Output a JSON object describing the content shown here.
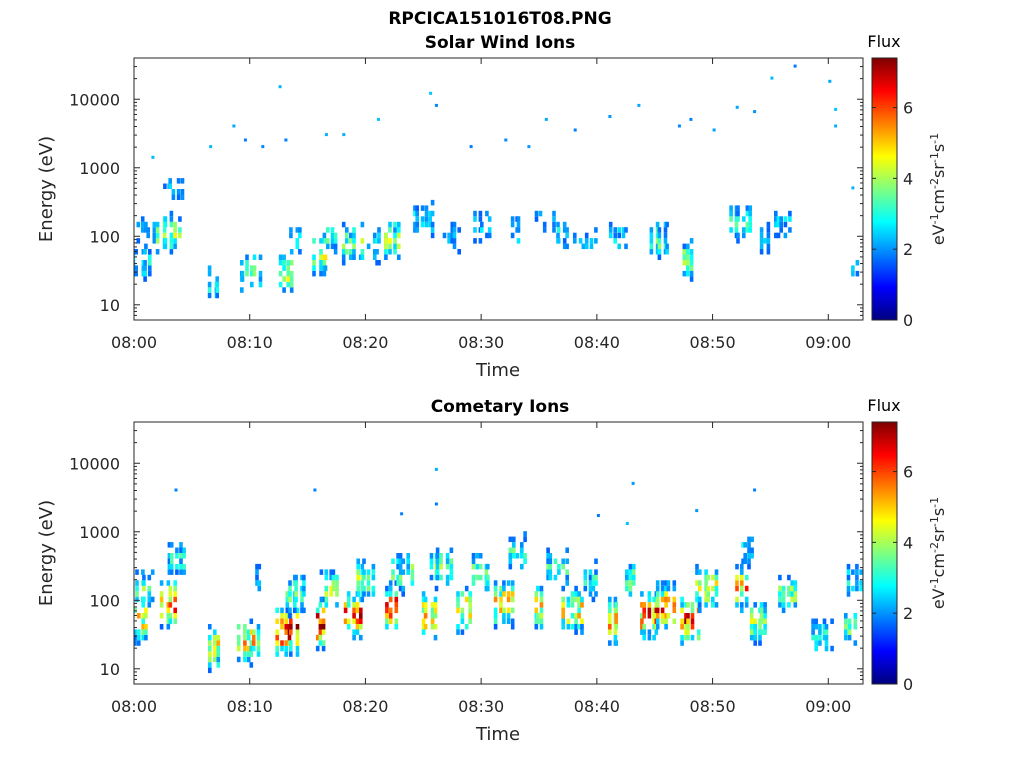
{
  "figure_title": "RPCICA151016T08.PNG",
  "colormap": [
    "#00007f",
    "#0000ff",
    "#007fff",
    "#00ffff",
    "#7fff7f",
    "#ffff00",
    "#ff7f00",
    "#ff0000",
    "#7f0000"
  ],
  "chart_data": [
    {
      "type": "heatmap",
      "title": "Solar Wind Ions",
      "xlabel": "Time",
      "ylabel": "Energy (eV)",
      "x_range": [
        "08:00",
        "09:03"
      ],
      "xticks": [
        "08:00",
        "08:10",
        "08:20",
        "08:30",
        "08:40",
        "08:50",
        "09:00"
      ],
      "y_scale": "log",
      "ylim": [
        6,
        40000
      ],
      "yticks": [
        10,
        100,
        1000,
        10000
      ],
      "colorbar": {
        "label": "Flux",
        "units": "eV-1 cm-2 sr-1 s-1",
        "range": [
          0,
          7.4
        ],
        "ticks": [
          0,
          2,
          4,
          6
        ]
      },
      "bursts": [
        {
          "t": 0.5,
          "e": 40,
          "f": 3.0
        },
        {
          "t": 1.0,
          "e": 120,
          "f": 2.6
        },
        {
          "t": 3.0,
          "e": 110,
          "f": 4.2
        },
        {
          "t": 3.4,
          "e": 500,
          "f": 2.2
        },
        {
          "t": 7.0,
          "e": 20,
          "f": 3.2
        },
        {
          "t": 10.0,
          "e": 30,
          "f": 3.5
        },
        {
          "t": 13.2,
          "e": 30,
          "f": 4.8
        },
        {
          "t": 14.0,
          "e": 90,
          "f": 2.8
        },
        {
          "t": 16.2,
          "e": 55,
          "f": 4.5
        },
        {
          "t": 17.2,
          "e": 90,
          "f": 3.2
        },
        {
          "t": 19.0,
          "e": 80,
          "f": 3.8
        },
        {
          "t": 21.0,
          "e": 70,
          "f": 3.4
        },
        {
          "t": 22.3,
          "e": 90,
          "f": 4.3
        },
        {
          "t": 25.0,
          "e": 180,
          "f": 2.8
        },
        {
          "t": 27.5,
          "e": 100,
          "f": 2.4
        },
        {
          "t": 30.0,
          "e": 140,
          "f": 2.6
        },
        {
          "t": 33.0,
          "e": 120,
          "f": 3.0
        },
        {
          "t": 35.5,
          "e": 170,
          "f": 2.5
        },
        {
          "t": 37.0,
          "e": 110,
          "f": 2.7
        },
        {
          "t": 39.0,
          "e": 90,
          "f": 2.6
        },
        {
          "t": 42.0,
          "e": 100,
          "f": 2.8
        },
        {
          "t": 45.5,
          "e": 90,
          "f": 3.6
        },
        {
          "t": 48.0,
          "e": 45,
          "f": 4.2
        },
        {
          "t": 52.5,
          "e": 160,
          "f": 3.5
        },
        {
          "t": 54.5,
          "e": 90,
          "f": 2.7
        },
        {
          "t": 56.0,
          "e": 150,
          "f": 2.5
        },
        {
          "t": 62.5,
          "e": 40,
          "f": 2.6
        }
      ],
      "scatter": [
        {
          "t": 1.5,
          "e": 1400
        },
        {
          "t": 6.5,
          "e": 2000
        },
        {
          "t": 8.5,
          "e": 4000
        },
        {
          "t": 9.5,
          "e": 2500
        },
        {
          "t": 11.0,
          "e": 2000
        },
        {
          "t": 12.5,
          "e": 15000
        },
        {
          "t": 13.0,
          "e": 2500
        },
        {
          "t": 16.5,
          "e": 3000
        },
        {
          "t": 18.0,
          "e": 3000
        },
        {
          "t": 21.0,
          "e": 5000
        },
        {
          "t": 25.5,
          "e": 12000
        },
        {
          "t": 26.0,
          "e": 8000
        },
        {
          "t": 29.0,
          "e": 2000
        },
        {
          "t": 32.0,
          "e": 2500
        },
        {
          "t": 34.0,
          "e": 2000
        },
        {
          "t": 35.5,
          "e": 5000
        },
        {
          "t": 38.0,
          "e": 3500
        },
        {
          "t": 41.0,
          "e": 5500
        },
        {
          "t": 43.5,
          "e": 8000
        },
        {
          "t": 47.0,
          "e": 4000
        },
        {
          "t": 50.0,
          "e": 3500
        },
        {
          "t": 52.0,
          "e": 7500
        },
        {
          "t": 53.5,
          "e": 6500
        },
        {
          "t": 55.0,
          "e": 20000
        },
        {
          "t": 57.0,
          "e": 30000
        },
        {
          "t": 60.0,
          "e": 18000
        },
        {
          "t": 60.5,
          "e": 7000
        },
        {
          "t": 60.5,
          "e": 4000
        },
        {
          "t": 48.0,
          "e": 5000
        },
        {
          "t": 62.0,
          "e": 500
        }
      ]
    },
    {
      "type": "heatmap",
      "title": "Cometary Ions",
      "xlabel": "Time",
      "ylabel": "Energy (eV)",
      "x_range": [
        "08:00",
        "09:03"
      ],
      "xticks": [
        "08:00",
        "08:10",
        "08:20",
        "08:30",
        "08:40",
        "08:50",
        "09:00"
      ],
      "y_scale": "log",
      "ylim": [
        6,
        40000
      ],
      "yticks": [
        10,
        100,
        1000,
        10000
      ],
      "colorbar": {
        "label": "Flux",
        "units": "eV-1 cm-2 sr-1 s-1",
        "range": [
          0,
          7.4
        ],
        "ticks": [
          0,
          2,
          4,
          6
        ]
      },
      "bursts": [
        {
          "t": 0.5,
          "e": 50,
          "f": 5.2
        },
        {
          "t": 1.0,
          "e": 150,
          "f": 3.5
        },
        {
          "t": 3.0,
          "e": 90,
          "f": 6.6
        },
        {
          "t": 3.6,
          "e": 400,
          "f": 3.2
        },
        {
          "t": 7.0,
          "e": 20,
          "f": 4.8
        },
        {
          "t": 10.0,
          "e": 25,
          "f": 5.2
        },
        {
          "t": 10.5,
          "e": 200,
          "f": 2.5
        },
        {
          "t": 13.2,
          "e": 35,
          "f": 6.9
        },
        {
          "t": 14.0,
          "e": 120,
          "f": 3.8
        },
        {
          "t": 16.2,
          "e": 45,
          "f": 7.0
        },
        {
          "t": 17.0,
          "e": 150,
          "f": 4.2
        },
        {
          "t": 19.0,
          "e": 60,
          "f": 6.4
        },
        {
          "t": 20.0,
          "e": 200,
          "f": 4.0
        },
        {
          "t": 22.2,
          "e": 80,
          "f": 6.7
        },
        {
          "t": 23.2,
          "e": 250,
          "f": 3.8
        },
        {
          "t": 25.5,
          "e": 60,
          "f": 5.8
        },
        {
          "t": 26.5,
          "e": 300,
          "f": 3.8
        },
        {
          "t": 28.5,
          "e": 70,
          "f": 5.6
        },
        {
          "t": 30.0,
          "e": 250,
          "f": 3.8
        },
        {
          "t": 32.0,
          "e": 90,
          "f": 5.6
        },
        {
          "t": 33.2,
          "e": 500,
          "f": 3.4
        },
        {
          "t": 35.0,
          "e": 80,
          "f": 5.4
        },
        {
          "t": 36.5,
          "e": 300,
          "f": 3.4
        },
        {
          "t": 38.0,
          "e": 70,
          "f": 5.0
        },
        {
          "t": 39.5,
          "e": 200,
          "f": 3.2
        },
        {
          "t": 41.5,
          "e": 50,
          "f": 5.8
        },
        {
          "t": 43.0,
          "e": 200,
          "f": 3.8
        },
        {
          "t": 44.5,
          "e": 60,
          "f": 6.3
        },
        {
          "t": 46.0,
          "e": 80,
          "f": 6.1
        },
        {
          "t": 48.0,
          "e": 50,
          "f": 6.6
        },
        {
          "t": 49.5,
          "e": 150,
          "f": 4.6
        },
        {
          "t": 52.5,
          "e": 150,
          "f": 5.6
        },
        {
          "t": 53.0,
          "e": 500,
          "f": 3.0
        },
        {
          "t": 54.0,
          "e": 50,
          "f": 4.3
        },
        {
          "t": 56.5,
          "e": 120,
          "f": 4.0
        },
        {
          "t": 59.5,
          "e": 30,
          "f": 3.2
        },
        {
          "t": 62.0,
          "e": 40,
          "f": 3.6
        },
        {
          "t": 62.6,
          "e": 200,
          "f": 3.2
        }
      ],
      "scatter": [
        {
          "t": 3.5,
          "e": 4000
        },
        {
          "t": 15.5,
          "e": 4000
        },
        {
          "t": 26.0,
          "e": 8000
        },
        {
          "t": 26.0,
          "e": 2500
        },
        {
          "t": 23.0,
          "e": 1800
        },
        {
          "t": 40.0,
          "e": 1700
        },
        {
          "t": 43.0,
          "e": 5000
        },
        {
          "t": 48.5,
          "e": 2000
        },
        {
          "t": 53.5,
          "e": 4000
        },
        {
          "t": 42.5,
          "e": 1300
        }
      ]
    }
  ]
}
